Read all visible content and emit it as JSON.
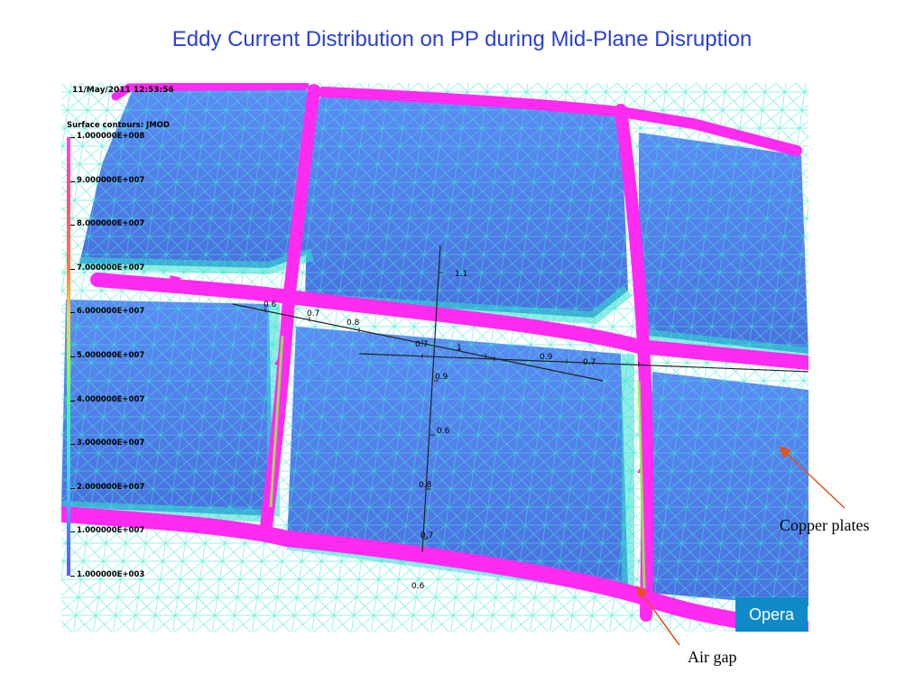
{
  "title": "Eddy Current Distribution on PP during Mid-Plane Disruption",
  "viewer": {
    "timestamp": "11/May/2011 12:53:56",
    "legend_title": "Surface contours: JMOD",
    "legend_ticks": [
      "1.000000E+008",
      "9.000000E+007",
      "8.000000E+007",
      "7.000000E+007",
      "6.000000E+007",
      "5.000000E+007",
      "4.000000E+007",
      "3.000000E+007",
      "2.000000E+007",
      "1.000000E+007",
      "1.000000E+003"
    ],
    "axis_labels": [
      "1.1",
      "0.6",
      "0.7",
      "0.8",
      "0.9",
      "1",
      "0.7",
      "0.6",
      "0.9",
      "0.8",
      "0.7",
      "0.6",
      "0.7"
    ],
    "logo_text": "Opera",
    "colors": {
      "plate": "#4a78e6",
      "edge_cyan": "#35e0d0",
      "arrow_magenta": "#ff2bf0"
    }
  },
  "annotations": {
    "copper_plates": "Copper plates",
    "air_gap": "Air gap",
    "arrow_color": "#e8501a"
  }
}
